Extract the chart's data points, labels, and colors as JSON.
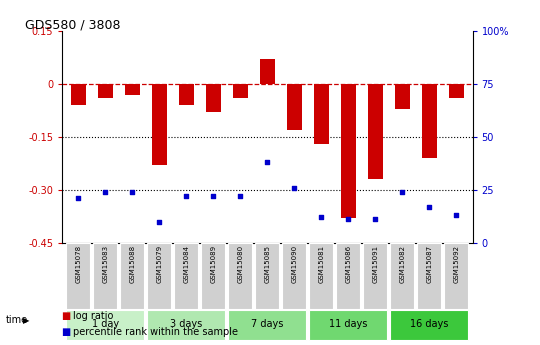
{
  "title": "GDS580 / 3808",
  "samples": [
    "GSM15078",
    "GSM15083",
    "GSM15088",
    "GSM15079",
    "GSM15084",
    "GSM15089",
    "GSM15080",
    "GSM15085",
    "GSM15090",
    "GSM15081",
    "GSM15086",
    "GSM15091",
    "GSM15082",
    "GSM15087",
    "GSM15092"
  ],
  "log_ratio": [
    -0.06,
    -0.04,
    -0.03,
    -0.23,
    -0.06,
    -0.08,
    -0.04,
    0.07,
    -0.13,
    -0.17,
    -0.38,
    -0.27,
    -0.07,
    -0.21,
    -0.04
  ],
  "percentile_rank": [
    21,
    24,
    24,
    10,
    22,
    22,
    22,
    38,
    26,
    12,
    11,
    11,
    24,
    17,
    13
  ],
  "groups": [
    {
      "label": "1 day",
      "start": 0,
      "end": 2,
      "color": "#c8f0c8"
    },
    {
      "label": "3 days",
      "start": 3,
      "end": 5,
      "color": "#b0e8b0"
    },
    {
      "label": "7 days",
      "start": 6,
      "end": 8,
      "color": "#90e090"
    },
    {
      "label": "11 days",
      "start": 9,
      "end": 11,
      "color": "#70d870"
    },
    {
      "label": "16 days",
      "start": 12,
      "end": 14,
      "color": "#3cc83c"
    }
  ],
  "ylim_left": [
    -0.45,
    0.15
  ],
  "ylim_right": [
    0,
    100
  ],
  "yticks_left": [
    0.15,
    0,
    -0.15,
    -0.3,
    -0.45
  ],
  "yticks_right": [
    100,
    75,
    50,
    25,
    0
  ],
  "ytick_labels_left": [
    "0.15",
    "0",
    "-0.15",
    "-0.30",
    "-0.45"
  ],
  "ytick_labels_right": [
    "100%",
    "75",
    "50",
    "25",
    "0"
  ],
  "bar_color": "#cc0000",
  "dot_color": "#0000cc",
  "dotted_lines": [
    -0.15,
    -0.3
  ],
  "background_color": "#ffffff",
  "sample_bg_color": "#d0d0d0",
  "legend_items": [
    "log ratio",
    "percentile rank within the sample"
  ],
  "title_fontsize": 9,
  "tick_fontsize": 7,
  "sample_fontsize": 5,
  "group_fontsize": 7
}
